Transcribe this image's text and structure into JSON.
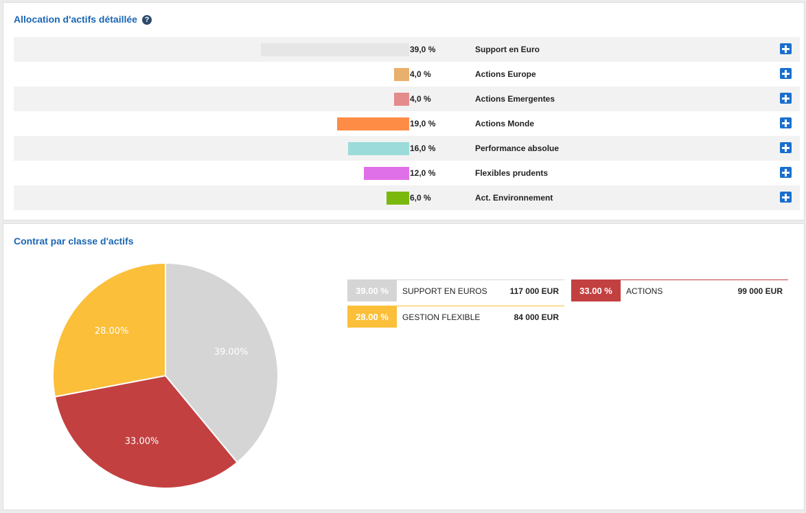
{
  "allocation": {
    "title": "Allocation d'actifs détaillée",
    "help_glyph": "?",
    "rows": [
      {
        "pct": 39.0,
        "pct_label": "39,0 %",
        "label": "Support en Euro",
        "color": "#e6e6e6"
      },
      {
        "pct": 4.0,
        "pct_label": "4,0 %",
        "label": "Actions Europe",
        "color": "#e8b06c"
      },
      {
        "pct": 4.0,
        "pct_label": "4,0 %",
        "label": "Actions Emergentes",
        "color": "#e48b8b"
      },
      {
        "pct": 19.0,
        "pct_label": "19,0 %",
        "label": "Actions Monde",
        "color": "#ff8c45"
      },
      {
        "pct": 16.0,
        "pct_label": "16,0 %",
        "label": "Performance absolue",
        "color": "#9bdcda"
      },
      {
        "pct": 12.0,
        "pct_label": "12,0 %",
        "label": "Flexibles prudents",
        "color": "#e070e8"
      },
      {
        "pct": 6.0,
        "pct_label": "6,0 %",
        "label": "Act. Environnement",
        "color": "#7ab80e"
      }
    ]
  },
  "contrat": {
    "title": "Contrat par classe d'actifs",
    "legend": [
      {
        "pct_label": "39.00 %",
        "name": "SUPPORT EN EUROS",
        "amount": "117 000 EUR",
        "color": "#d5d5d5"
      },
      {
        "pct_label": "33.00 %",
        "name": "ACTIONS",
        "amount": "99 000 EUR",
        "color": "#c24040"
      },
      {
        "pct_label": "28.00 %",
        "name": "GESTION FLEXIBLE",
        "amount": "84 000 EUR",
        "color": "#fcbf39"
      }
    ]
  },
  "chart_data": {
    "type": "pie",
    "categories": [
      "SUPPORT EN EUROS",
      "ACTIONS",
      "GESTION FLEXIBLE"
    ],
    "values": [
      39.0,
      33.0,
      28.0
    ],
    "labels": [
      "39.00%",
      "33.00%",
      "28.00%"
    ],
    "colors": [
      "#d5d5d5",
      "#c24040",
      "#fcbf39"
    ]
  }
}
